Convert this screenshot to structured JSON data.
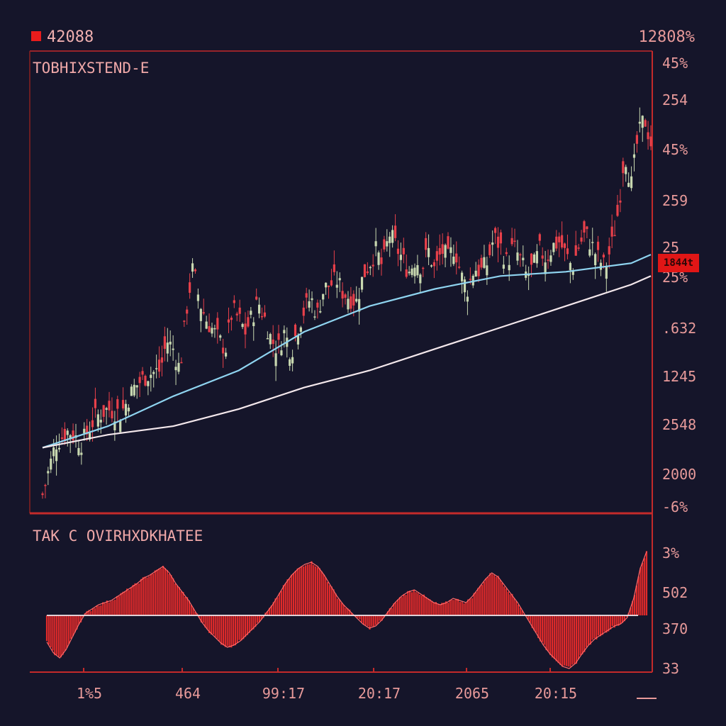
{
  "header": {
    "symbol": "42088",
    "change": "12808%"
  },
  "price_panel": {
    "title": "TOBHIXSTEND-E",
    "y_tick_labels": [
      "45%",
      "254",
      "45%",
      "259",
      "25",
      "25%",
      ".632",
      "1245",
      "2548",
      "2000",
      "-6%"
    ],
    "last_price_tag": "1844t"
  },
  "oscillator_panel": {
    "title": "TAK C OVIRHXDKHATEE",
    "y_tick_labels": [
      "3%",
      "502",
      "370",
      "33"
    ]
  },
  "colors": {
    "background": "#15152a",
    "axis": "#c42a2a",
    "text": "#e89a9a",
    "candle_up": "#c8d8b0",
    "candle_down": "#e8404a",
    "ma_fast": "#8fd4f0",
    "ma_slow": "#f4e8ec",
    "histogram": "#e02a2a",
    "price_tag": "#e01616"
  },
  "chart_data": [
    {
      "type": "candlestick",
      "title": "TOBHIXSTEND-E",
      "x_tick_labels": [
        "1%5",
        "464",
        "99:17",
        "20:17",
        "2065",
        "20:15"
      ],
      "ylim": [
        0,
        100
      ],
      "close_path": [
        [
          0,
          2
        ],
        [
          2,
          14
        ],
        [
          4,
          17
        ],
        [
          6,
          14
        ],
        [
          8,
          20
        ],
        [
          10,
          22
        ],
        [
          12,
          21
        ],
        [
          14,
          27
        ],
        [
          16,
          30
        ],
        [
          18,
          31
        ],
        [
          19,
          38
        ],
        [
          20,
          36
        ],
        [
          21,
          31
        ],
        [
          22,
          45
        ],
        [
          23,
          55
        ],
        [
          24,
          47
        ],
        [
          25,
          43
        ],
        [
          27,
          38
        ],
        [
          28,
          36
        ],
        [
          29,
          45
        ],
        [
          30,
          43
        ],
        [
          31,
          40
        ],
        [
          33,
          47
        ],
        [
          34,
          43
        ],
        [
          35,
          38
        ],
        [
          36,
          36
        ],
        [
          37,
          40
        ],
        [
          38,
          35
        ],
        [
          39,
          41
        ],
        [
          40,
          45
        ],
        [
          41,
          48
        ],
        [
          42,
          44
        ],
        [
          43,
          50
        ],
        [
          45,
          52
        ],
        [
          46,
          49
        ],
        [
          48,
          47
        ],
        [
          49,
          53
        ],
        [
          51,
          59
        ],
        [
          52,
          55
        ],
        [
          53,
          63
        ],
        [
          54,
          60
        ],
        [
          55,
          57
        ],
        [
          56,
          54
        ],
        [
          57,
          57
        ],
        [
          58,
          55
        ],
        [
          59,
          59
        ],
        [
          60,
          54
        ],
        [
          61,
          59
        ],
        [
          62,
          57
        ],
        [
          63,
          60
        ],
        [
          64,
          53
        ],
        [
          65,
          50
        ],
        [
          66,
          55
        ],
        [
          67,
          54
        ],
        [
          68,
          56
        ],
        [
          69,
          62
        ],
        [
          70,
          60
        ],
        [
          71,
          56
        ],
        [
          72,
          60
        ],
        [
          73,
          57
        ],
        [
          74,
          53
        ],
        [
          75,
          55
        ],
        [
          76,
          59
        ],
        [
          77,
          57
        ],
        [
          78,
          60
        ],
        [
          79,
          61
        ],
        [
          80,
          58
        ],
        [
          81,
          55
        ],
        [
          82,
          60
        ],
        [
          83,
          63
        ],
        [
          84,
          60
        ],
        [
          85,
          57
        ],
        [
          86,
          55
        ],
        [
          87,
          60
        ],
        [
          88,
          68
        ],
        [
          89,
          82
        ],
        [
          90,
          74
        ],
        [
          91,
          85
        ],
        [
          92,
          90
        ],
        [
          93,
          84
        ]
      ],
      "series": [
        {
          "name": "MA fast",
          "points": [
            [
              0,
              13
            ],
            [
              10,
              18
            ],
            [
              20,
              25
            ],
            [
              30,
              31
            ],
            [
              40,
              40
            ],
            [
              50,
              46
            ],
            [
              60,
              50
            ],
            [
              70,
              53
            ],
            [
              80,
              54
            ],
            [
              90,
              56
            ],
            [
              93,
              58
            ]
          ]
        },
        {
          "name": "MA slow",
          "points": [
            [
              0,
              13
            ],
            [
              10,
              16
            ],
            [
              20,
              18
            ],
            [
              30,
              22
            ],
            [
              40,
              27
            ],
            [
              50,
              31
            ],
            [
              60,
              36
            ],
            [
              70,
              41
            ],
            [
              80,
              46
            ],
            [
              90,
              51
            ],
            [
              93,
              53
            ]
          ]
        }
      ]
    },
    {
      "type": "bar",
      "title": "TAK C OVIRHXDKHATEE",
      "ylim": [
        -60,
        60
      ],
      "values": [
        -25,
        -35,
        -40,
        -32,
        -20,
        -8,
        2,
        6,
        10,
        12,
        14,
        18,
        22,
        26,
        30,
        35,
        38,
        42,
        46,
        40,
        30,
        22,
        14,
        4,
        -6,
        -14,
        -20,
        -26,
        -30,
        -28,
        -24,
        -18,
        -12,
        -6,
        2,
        10,
        20,
        30,
        38,
        44,
        48,
        50,
        46,
        38,
        28,
        18,
        10,
        4,
        -2,
        -8,
        -12,
        -10,
        -4,
        4,
        12,
        18,
        22,
        24,
        20,
        16,
        12,
        10,
        12,
        16,
        14,
        12,
        18,
        26,
        34,
        40,
        36,
        28,
        20,
        12,
        2,
        -8,
        -18,
        -28,
        -36,
        -42,
        -48,
        -50,
        -45,
        -36,
        -28,
        -22,
        -18,
        -14,
        -10,
        -8,
        -2,
        16,
        44,
        60
      ]
    }
  ]
}
